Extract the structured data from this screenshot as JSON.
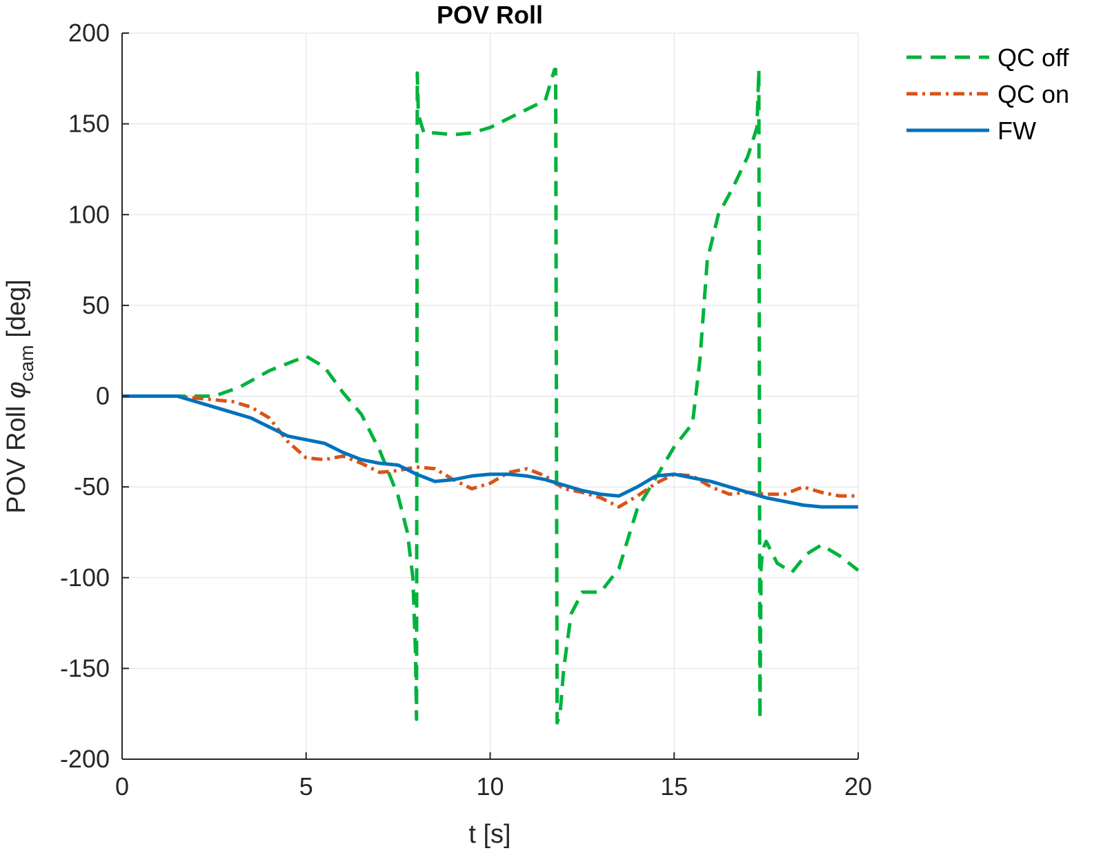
{
  "chart_data": {
    "type": "line",
    "title": "POV Roll",
    "xlabel": "t [s]",
    "ylabel": {
      "prefix": "POV Roll ",
      "symbol": "φ",
      "subscript": "cam",
      "suffix": " [deg]"
    },
    "xlim": [
      0,
      20
    ],
    "ylim": [
      -200,
      200
    ],
    "xticks": [
      0,
      5,
      10,
      15,
      20
    ],
    "yticks": [
      -200,
      -150,
      -100,
      -50,
      0,
      50,
      100,
      150,
      200
    ],
    "grid": true,
    "legend_position": "top-right, outside",
    "series": [
      {
        "name": "QC off",
        "color": "#00b33c",
        "style": "dashed",
        "x": [
          0,
          1.5,
          2.5,
          3.2,
          4.0,
          4.5,
          5.0,
          5.5,
          6.0,
          6.5,
          7.0,
          7.5,
          7.75,
          7.9,
          7.97,
          8.0,
          8.02,
          8.05,
          8.2,
          8.5,
          9.0,
          9.5,
          10.0,
          10.5,
          11.0,
          11.5,
          11.75,
          11.78,
          11.82,
          11.9,
          12.0,
          12.2,
          12.5,
          13.0,
          13.5,
          13.8,
          14.0,
          14.5,
          15.0,
          15.5,
          15.7,
          15.9,
          16.2,
          16.6,
          17.0,
          17.25,
          17.3,
          17.33,
          17.36,
          17.4,
          17.5,
          17.8,
          18.2,
          18.6,
          19.0,
          19.5,
          20.0
        ],
        "y": [
          0,
          0,
          0,
          5,
          14,
          18,
          22,
          16,
          2,
          -10,
          -30,
          -55,
          -75,
          -100,
          -140,
          -178,
          178,
          155,
          145,
          145,
          144,
          145,
          148,
          153,
          158,
          163,
          180,
          180,
          -180,
          -175,
          -150,
          -120,
          -108,
          -108,
          -95,
          -75,
          -62,
          -45,
          -28,
          -15,
          20,
          75,
          100,
          115,
          132,
          148,
          180,
          -178,
          -95,
          -85,
          -80,
          -92,
          -97,
          -87,
          -82,
          -88,
          -96
        ]
      },
      {
        "name": "QC on",
        "color": "#d95319",
        "style": "dash-dot",
        "x": [
          0,
          1.5,
          2.0,
          2.5,
          3.0,
          3.5,
          4.0,
          4.5,
          5.0,
          5.5,
          6.0,
          6.5,
          7.0,
          7.5,
          8.0,
          8.5,
          9.0,
          9.5,
          10.0,
          10.5,
          11.0,
          11.5,
          12.0,
          12.5,
          13.0,
          13.5,
          14.0,
          14.5,
          15.0,
          15.5,
          16.0,
          16.5,
          17.0,
          17.5,
          18.0,
          18.5,
          19.0,
          19.5,
          20.0
        ],
        "y": [
          0,
          0,
          -1,
          -2,
          -3,
          -6,
          -12,
          -25,
          -34,
          -35,
          -33,
          -37,
          -42,
          -41,
          -39,
          -40,
          -46,
          -51,
          -48,
          -42,
          -40,
          -44,
          -51,
          -53,
          -56,
          -61,
          -55,
          -48,
          -43,
          -44,
          -50,
          -54,
          -53,
          -54,
          -54,
          -50,
          -53,
          -55,
          -55
        ]
      },
      {
        "name": "FW",
        "color": "#0072bd",
        "style": "solid",
        "x": [
          0,
          1.5,
          2.0,
          2.5,
          3.0,
          3.5,
          4.0,
          4.5,
          5.0,
          5.5,
          6.0,
          6.5,
          7.0,
          7.5,
          8.0,
          8.5,
          9.0,
          9.5,
          10.0,
          10.5,
          11.0,
          11.5,
          12.0,
          12.5,
          13.0,
          13.5,
          14.0,
          14.5,
          15.0,
          15.5,
          16.0,
          16.5,
          17.0,
          17.5,
          18.0,
          18.5,
          19.0,
          19.5,
          20.0
        ],
        "y": [
          0,
          0,
          -3,
          -6,
          -9,
          -12,
          -17,
          -22,
          -24,
          -26,
          -31,
          -35,
          -37,
          -38,
          -43,
          -47,
          -46,
          -44,
          -43,
          -43,
          -44,
          -46,
          -49,
          -52,
          -54,
          -55,
          -50,
          -44,
          -43,
          -45,
          -47,
          -50,
          -53,
          -56,
          -58,
          -60,
          -61,
          -61,
          -61
        ]
      }
    ]
  }
}
